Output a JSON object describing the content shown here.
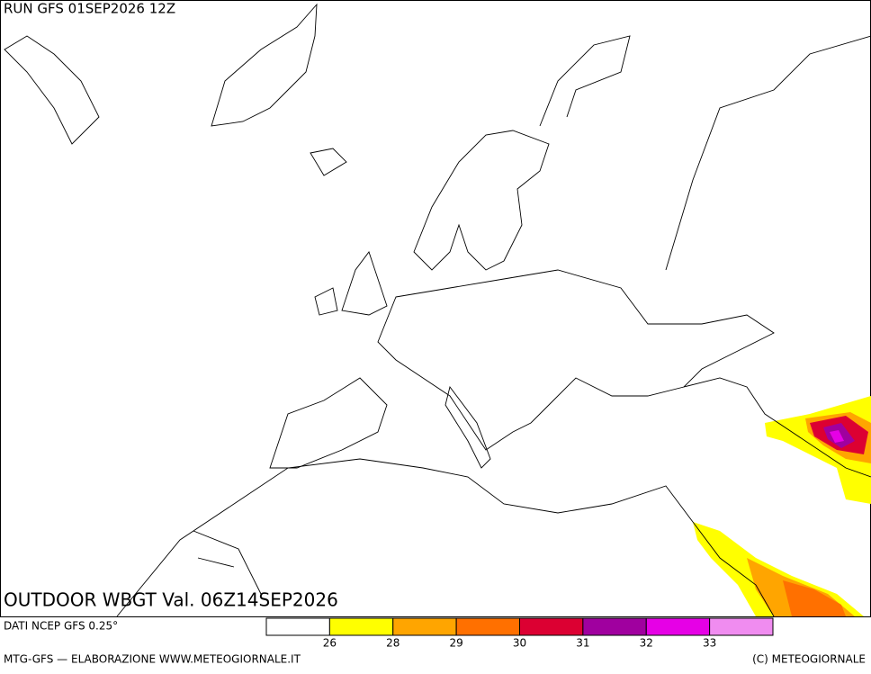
{
  "header": {
    "title": "RUN GFS 01SEP2026 12Z"
  },
  "map": {
    "caption": "OUTDOOR WBGT Val. 06Z14SEP2026"
  },
  "legend": {
    "source": "DATI NCEP GFS 0.25°",
    "colors": [
      "#ffffff",
      "#ffff00",
      "#ffa500",
      "#ff7000",
      "#dc0032",
      "#a0009f",
      "#e600e6",
      "#f08cf0"
    ],
    "labels": [
      "26",
      "28",
      "29",
      "30",
      "31",
      "32",
      "33"
    ]
  },
  "footer": {
    "left": "MTG-GFS — ELABORAZIONE WWW.METEOGIORNALE.IT",
    "right": "(C) METEOGIORNALE"
  }
}
